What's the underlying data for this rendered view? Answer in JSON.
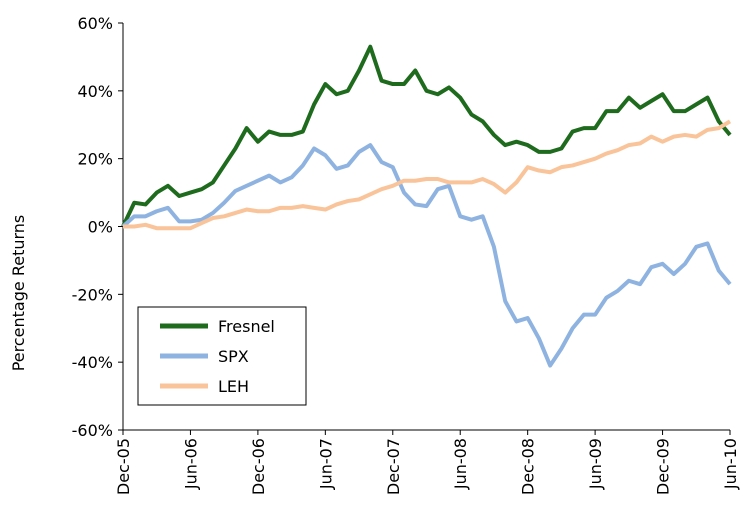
{
  "chart_data": {
    "type": "line",
    "y_label": "Percentage Returns",
    "categories": [
      "Dec-05",
      null,
      null,
      null,
      null,
      null,
      "Jun-06",
      null,
      null,
      null,
      null,
      null,
      "Dec-06",
      null,
      null,
      null,
      null,
      null,
      "Jun-07",
      null,
      null,
      null,
      null,
      null,
      "Dec-07",
      null,
      null,
      null,
      null,
      null,
      "Jun-08",
      null,
      null,
      null,
      null,
      null,
      "Dec-08",
      null,
      null,
      null,
      null,
      null,
      "Jun-09",
      null,
      null,
      null,
      null,
      null,
      "Dec-09",
      null,
      null,
      null,
      null,
      null,
      "Jun-10"
    ],
    "series": [
      {
        "name": "Fresnel",
        "color": "#1e6b1e",
        "values": [
          0,
          7,
          6.5,
          10,
          12,
          9,
          10,
          11,
          13,
          18,
          23,
          29,
          25,
          28,
          27,
          27,
          28,
          36,
          42,
          39,
          40,
          46,
          53,
          43,
          42,
          42,
          46,
          40,
          39,
          41,
          38,
          33,
          31,
          27,
          24,
          25,
          24,
          22,
          22,
          23,
          28,
          29,
          29,
          34,
          34,
          38,
          35,
          37,
          39,
          34,
          34,
          36,
          38,
          31,
          27
        ]
      },
      {
        "name": "SPX",
        "color": "#8fb3e0",
        "values": [
          0,
          3,
          3,
          4.5,
          5.5,
          1.5,
          1.5,
          2,
          4,
          7,
          10.5,
          12,
          13.5,
          15,
          13,
          14.5,
          18,
          23,
          21,
          17,
          18,
          22,
          24,
          19,
          17.5,
          10,
          6.5,
          6,
          11,
          12,
          3,
          2,
          3,
          -6,
          -22,
          -28,
          -27,
          -33,
          -41,
          -36,
          -30,
          -26,
          -26,
          -21,
          -19,
          -16,
          -17,
          -12,
          -11,
          -14,
          -11,
          -6,
          -5,
          -13,
          -17
        ]
      },
      {
        "name": "LEH",
        "color": "#f9c49a",
        "values": [
          0,
          0,
          0.5,
          -0.5,
          -0.5,
          -0.5,
          -0.5,
          1,
          2.5,
          3,
          4,
          5,
          4.5,
          4.5,
          5.5,
          5.5,
          6,
          5.5,
          5,
          6.5,
          7.5,
          8,
          9.5,
          11,
          12,
          13.5,
          13.5,
          14,
          14,
          13,
          13,
          13,
          14,
          12.5,
          10,
          13,
          17.5,
          16.5,
          16,
          17.5,
          18,
          19,
          20,
          21.5,
          22.5,
          24,
          24.5,
          26.5,
          25,
          26.5,
          27,
          26.5,
          28.5,
          29,
          31
        ]
      }
    ],
    "ylim": [
      -60,
      60
    ],
    "yticks": [
      {
        "value": -60,
        "label": "-60%"
      },
      {
        "value": -40,
        "label": "-40%"
      },
      {
        "value": -20,
        "label": "-20%"
      },
      {
        "value": 0,
        "label": "0%"
      },
      {
        "value": 20,
        "label": "20%"
      },
      {
        "value": 40,
        "label": "40%"
      },
      {
        "value": 60,
        "label": "60%"
      }
    ],
    "grid": false,
    "legend": "lower left"
  }
}
